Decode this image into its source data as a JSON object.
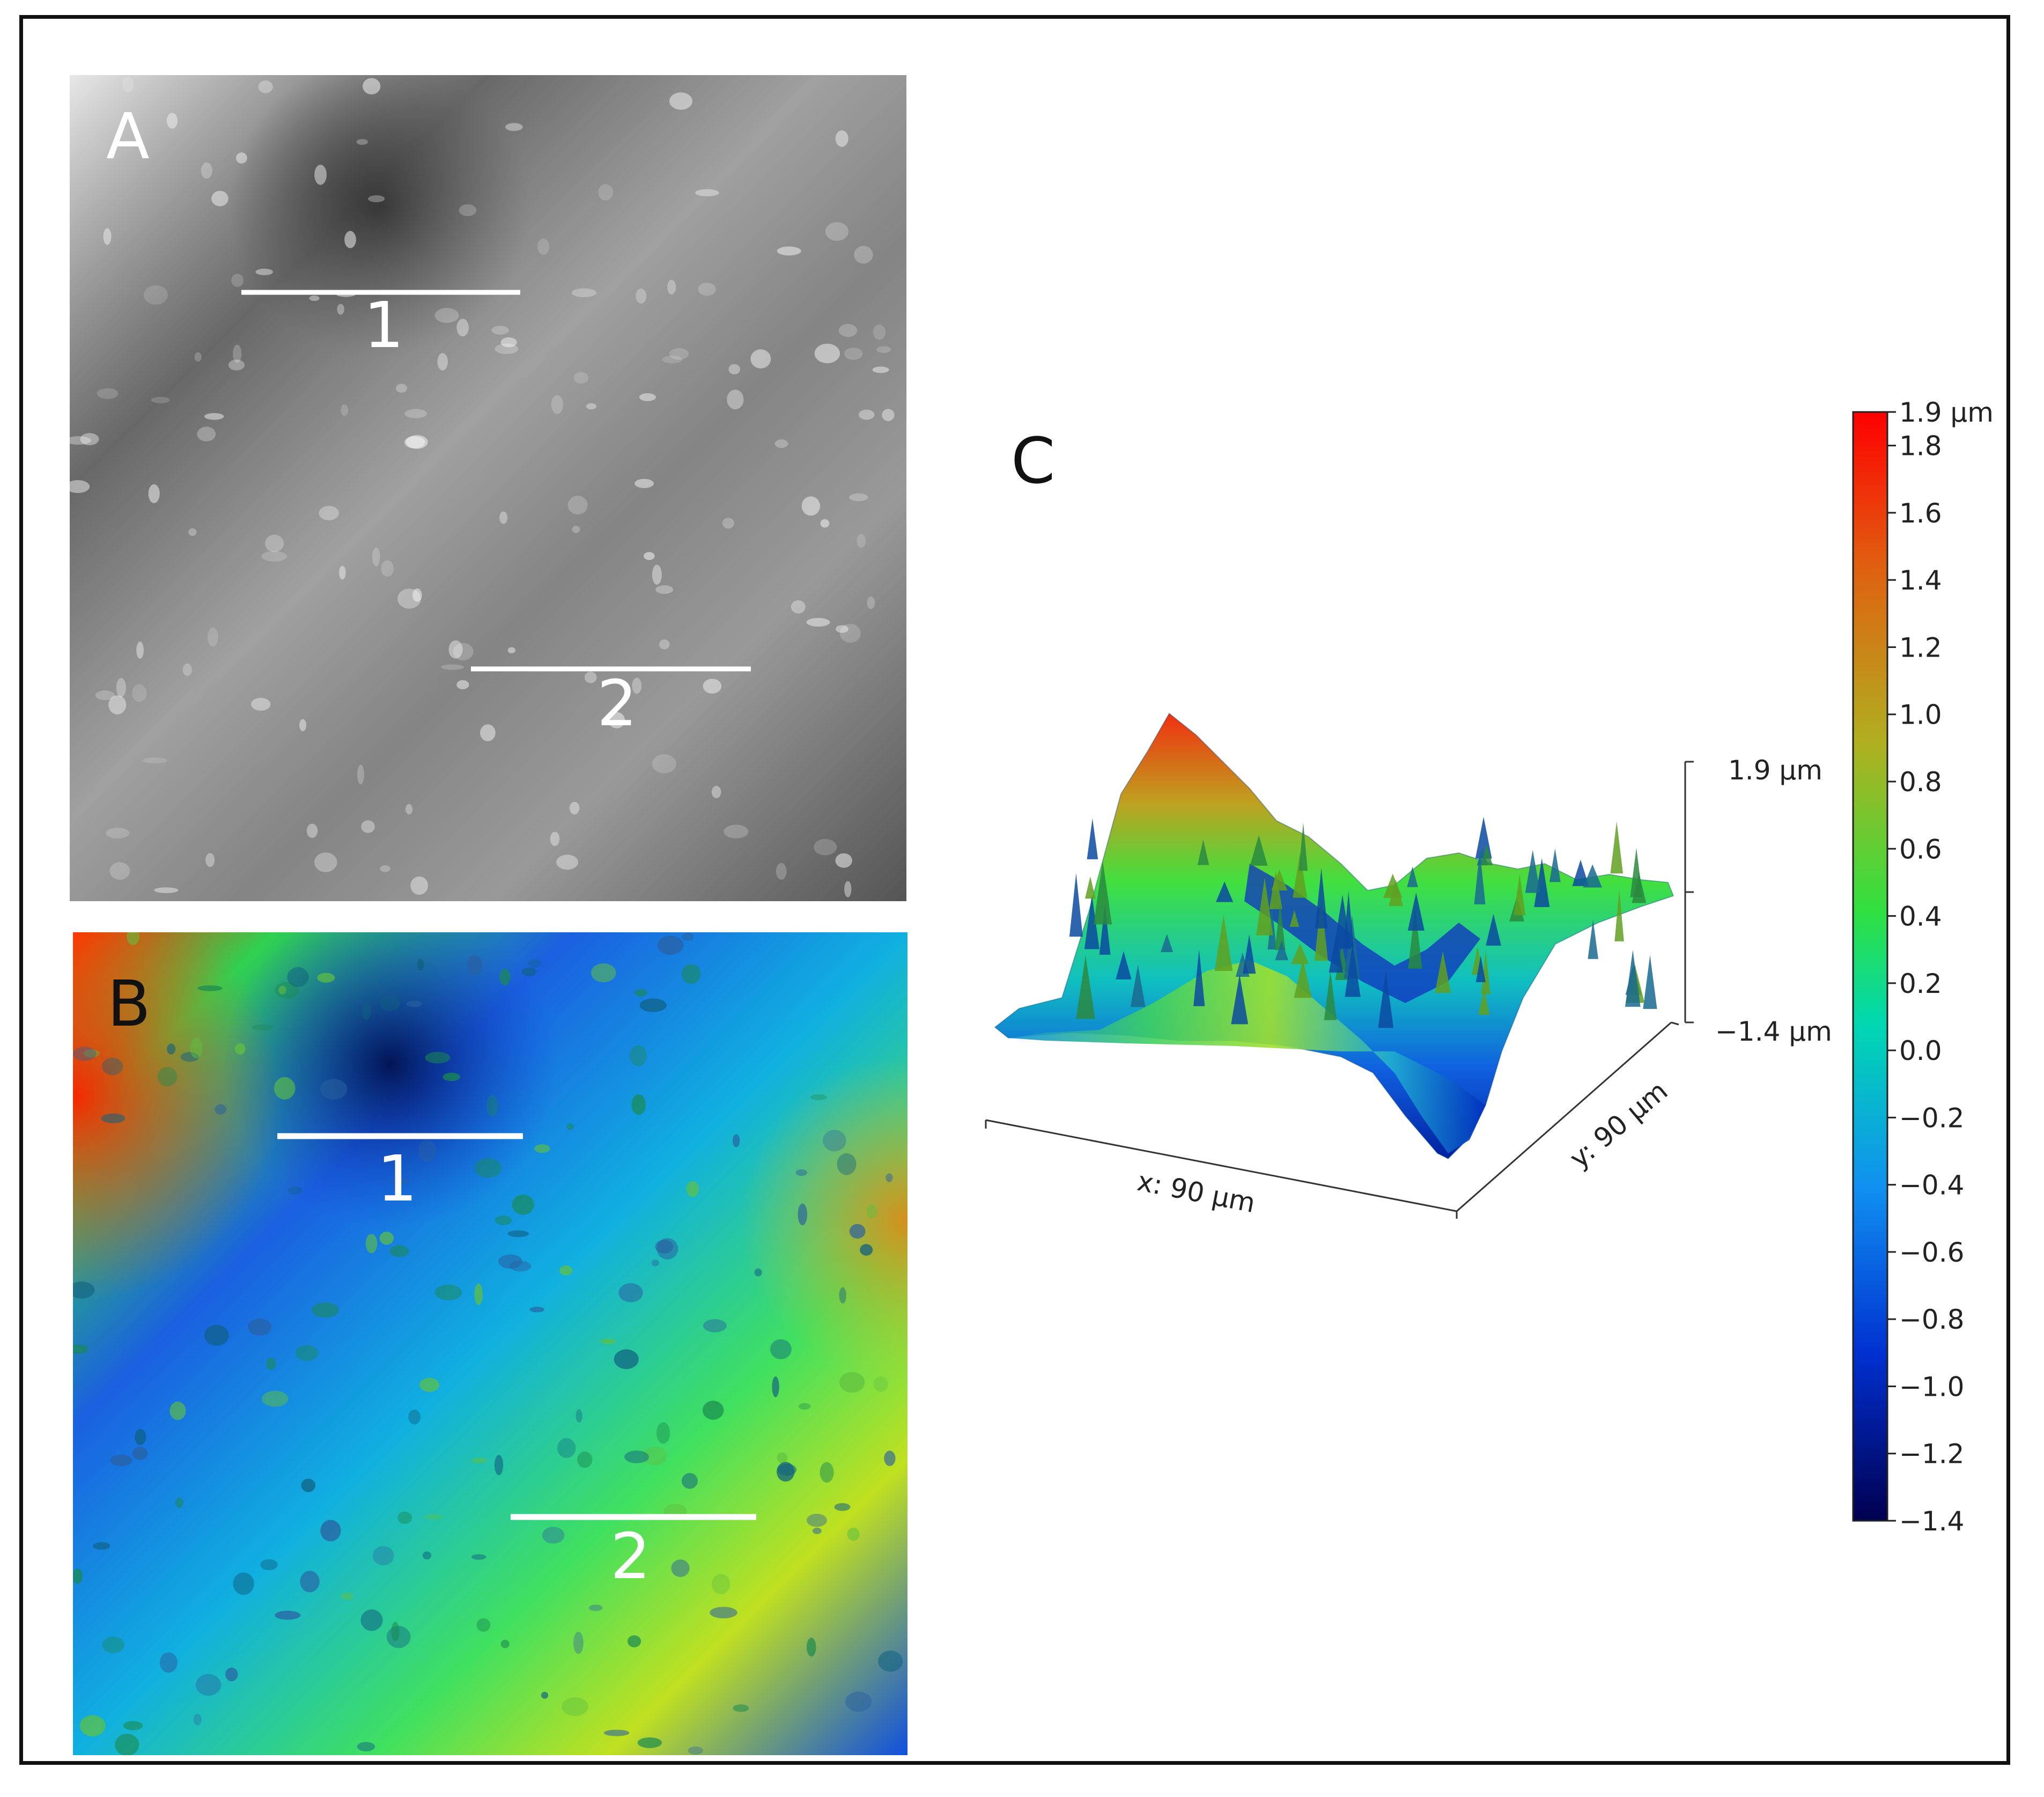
{
  "panels": {
    "a": {
      "letter": "A",
      "line1_label": "1",
      "line2_label": "2"
    },
    "b": {
      "letter": "B",
      "line1_label": "1",
      "line2_label": "2"
    },
    "c": {
      "letter": "C",
      "z_top_label": "1.9 µm",
      "z_bottom_label": "−1.4 µm",
      "x_axis_label": "x: 90 µm",
      "y_axis_label": "y: 90 µm"
    }
  },
  "colorbar": {
    "ticks": [
      {
        "value": 1.9,
        "label": "1.9 µm"
      },
      {
        "value": 1.8,
        "label": "1.8"
      },
      {
        "value": 1.6,
        "label": "1.6"
      },
      {
        "value": 1.4,
        "label": "1.4"
      },
      {
        "value": 1.2,
        "label": "1.2"
      },
      {
        "value": 1.0,
        "label": "1.0"
      },
      {
        "value": 0.8,
        "label": "0.8"
      },
      {
        "value": 0.6,
        "label": "0.6"
      },
      {
        "value": 0.4,
        "label": "0.4"
      },
      {
        "value": 0.2,
        "label": "0.2"
      },
      {
        "value": 0.0,
        "label": "0.0"
      },
      {
        "value": -0.2,
        "label": "−0.2"
      },
      {
        "value": -0.4,
        "label": "−0.4"
      },
      {
        "value": -0.6,
        "label": "−0.6"
      },
      {
        "value": -0.8,
        "label": "−0.8"
      },
      {
        "value": -1.0,
        "label": "−1.0"
      },
      {
        "value": -1.2,
        "label": "−1.2"
      },
      {
        "value": -1.4,
        "label": "−1.4"
      }
    ],
    "max": 1.9,
    "min": -1.4,
    "colors": [
      "#ff0000",
      "#e07010",
      "#b8b818",
      "#30e040",
      "#00d8b8",
      "#1090f0",
      "#0030d0",
      "#000060"
    ]
  }
}
